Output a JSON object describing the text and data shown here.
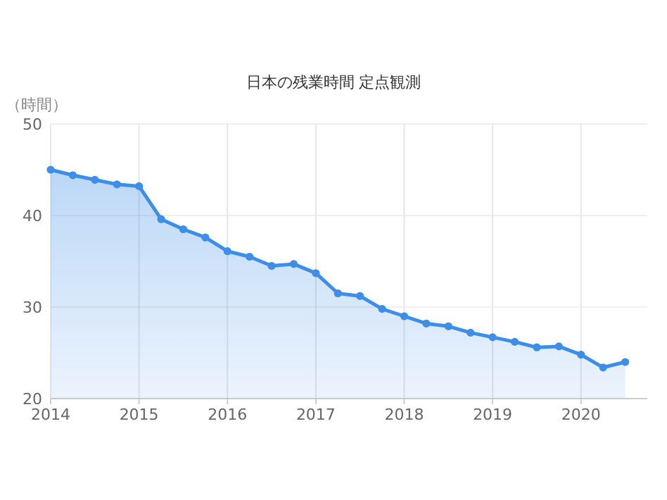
{
  "chart_data": {
    "type": "area",
    "title": "日本の残業時間 定点観測",
    "ylabel": "（時間）",
    "x": [
      2014,
      2014.25,
      2014.5,
      2014.75,
      2015,
      2015.25,
      2015.5,
      2015.75,
      2016,
      2016.25,
      2016.5,
      2016.75,
      2017,
      2017.25,
      2017.5,
      2017.75,
      2018,
      2018.25,
      2018.5,
      2018.75,
      2019,
      2019.25,
      2019.5,
      2019.75,
      2020,
      2020.25,
      2020.5
    ],
    "series": [
      {
        "color": "#3d8ee8",
        "values": [
          45.0,
          44.4,
          43.9,
          43.4,
          43.2,
          39.6,
          38.5,
          37.6,
          36.1,
          35.5,
          34.5,
          34.7,
          33.7,
          31.5,
          31.2,
          29.8,
          29.0,
          28.2,
          27.9,
          27.2,
          26.7,
          26.2,
          25.6,
          25.7,
          24.8,
          23.4,
          24.0
        ]
      }
    ],
    "xlim": [
      2014,
      2020.75
    ],
    "xticks": [
      2014,
      2015,
      2016,
      2017,
      2018,
      2019,
      2020
    ],
    "ylim": [
      20,
      50
    ],
    "yticks": [
      20,
      30,
      40,
      50
    ],
    "grid": true,
    "marker": "circle",
    "line_style": "solid"
  }
}
